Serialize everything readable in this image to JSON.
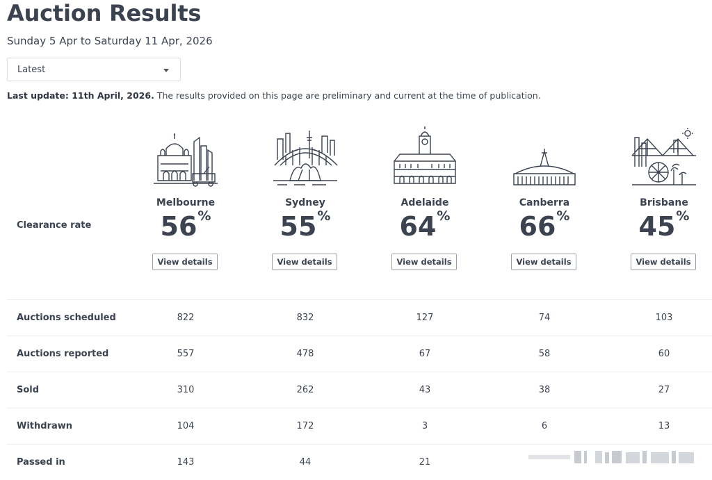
{
  "page": {
    "title": "Auction Results",
    "date_range": "Sunday 5 Apr to Saturday 11 Apr, 2026",
    "dropdown_value": "Latest",
    "last_update_label": "Last update: 11th April, 2026.",
    "last_update_note": "The results provided on this page are preliminary and current at the time of publication."
  },
  "clearance_label": "Clearance rate",
  "percent_symbol": "%",
  "view_details_label": "View details",
  "cities": [
    {
      "name": "Melbourne",
      "rate": "56",
      "icon": "melbourne-skyline-icon"
    },
    {
      "name": "Sydney",
      "rate": "55",
      "icon": "sydney-opera-house-icon"
    },
    {
      "name": "Adelaide",
      "rate": "64",
      "icon": "adelaide-town-hall-icon"
    },
    {
      "name": "Canberra",
      "rate": "66",
      "icon": "canberra-parliament-icon"
    },
    {
      "name": "Brisbane",
      "rate": "45",
      "icon": "brisbane-story-bridge-icon"
    }
  ],
  "table": {
    "rows": [
      {
        "label": "Auctions scheduled",
        "values": [
          "822",
          "832",
          "127",
          "74",
          "103"
        ]
      },
      {
        "label": "Auctions reported",
        "values": [
          "557",
          "478",
          "67",
          "58",
          "60"
        ]
      },
      {
        "label": "Sold",
        "values": [
          "310",
          "262",
          "43",
          "38",
          "27"
        ]
      },
      {
        "label": "Withdrawn",
        "values": [
          "104",
          "172",
          "3",
          "6",
          "13"
        ]
      },
      {
        "label": "Passed in",
        "values": [
          "143",
          "44",
          "21",
          "",
          ""
        ]
      }
    ]
  },
  "colors": {
    "text": "#3b4250",
    "border": "#d9dce1",
    "button_border": "#9aa0aa"
  }
}
